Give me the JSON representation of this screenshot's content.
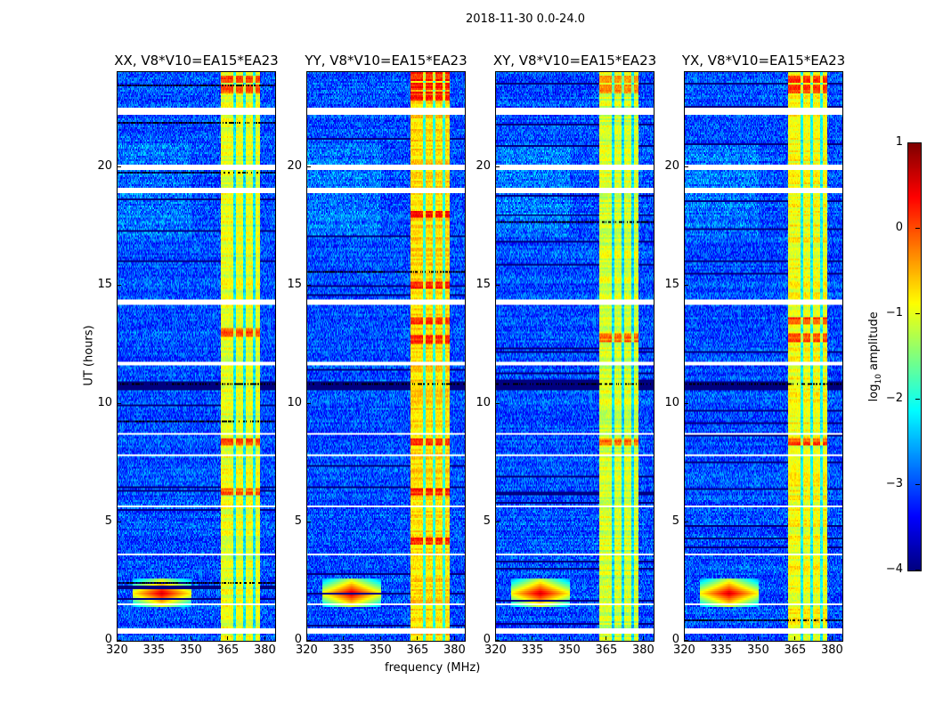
{
  "suptitle": "2018-11-30 0.0-24.0",
  "xlabel": "frequency (MHz)",
  "ylabel": "UT (hours)",
  "colorbar": {
    "label_prefix": "log",
    "label_sub": "10",
    "label_suffix": " amplitude",
    "range": [
      -4,
      1
    ],
    "ticks": [
      1,
      0,
      -1,
      -2,
      -3,
      -4
    ],
    "tick_labels": [
      "1",
      "0",
      "−1",
      "−2",
      "−3",
      "−4"
    ],
    "colormap": "jet"
  },
  "chart_data": [
    {
      "type": "heatmap",
      "title": "XX, V8*V10=EA15*EA23",
      "xlim": [
        320,
        384
      ],
      "ylim": [
        0,
        24
      ],
      "xticks": [
        320,
        335,
        350,
        365,
        380
      ],
      "xtick_labels": [
        "320",
        "335",
        "350",
        "365",
        "380"
      ],
      "yticks": [
        0,
        5,
        10,
        15,
        20
      ],
      "ytick_labels": [
        "0",
        "5",
        "10",
        "15",
        "20"
      ],
      "band_mhz": [
        362,
        378
      ],
      "band_level": -1.0,
      "hot_hours": [
        23.3,
        23.7,
        13.0,
        6.3,
        8.4
      ],
      "rfi": {
        "freq": 338,
        "hour": 2.0
      },
      "flagged_hours": [
        [
          22.2,
          22.5
        ],
        [
          19.9,
          20.1
        ],
        [
          18.9,
          19.1
        ],
        [
          14.2,
          14.4
        ],
        [
          11.6,
          11.8
        ],
        [
          8.7,
          8.8
        ],
        [
          7.8,
          7.9
        ],
        [
          5.6,
          5.7
        ],
        [
          4.1,
          4.15
        ],
        [
          3.6,
          3.7
        ],
        [
          1.5,
          1.6
        ],
        [
          0.3,
          0.5
        ]
      ],
      "bad_hours": [
        [
          10.6,
          10.95
        ]
      ]
    },
    {
      "type": "heatmap",
      "title": "YY, V8*V10=EA15*EA23",
      "xlim": [
        320,
        384
      ],
      "ylim": [
        0,
        24
      ],
      "xticks": [
        320,
        335,
        350,
        365,
        380
      ],
      "xtick_labels": [
        "320",
        "335",
        "350",
        "365",
        "380"
      ],
      "yticks": [
        0,
        5,
        10,
        15,
        20
      ],
      "ytick_labels": [
        "0",
        "5",
        "10",
        "15",
        "20"
      ],
      "band_mhz": [
        362,
        378
      ],
      "band_level": -0.7,
      "hot_hours": [
        23.0,
        23.4,
        23.8,
        12.7,
        13.5,
        18.0,
        15.0,
        8.4,
        6.3,
        4.2
      ],
      "rfi": {
        "freq": 338,
        "hour": 2.0
      },
      "flagged_hours": [
        [
          22.2,
          22.5
        ],
        [
          19.9,
          20.1
        ],
        [
          18.9,
          19.1
        ],
        [
          14.2,
          14.4
        ],
        [
          11.6,
          11.8
        ],
        [
          8.7,
          8.8
        ],
        [
          7.8,
          7.9
        ],
        [
          5.6,
          5.7
        ],
        [
          4.1,
          4.15
        ],
        [
          3.6,
          3.7
        ],
        [
          1.5,
          1.6
        ],
        [
          0.3,
          0.5
        ]
      ],
      "bad_hours": [
        [
          10.6,
          10.95
        ]
      ]
    },
    {
      "type": "heatmap",
      "title": "XY, V8*V10=EA15*EA23",
      "xlim": [
        320,
        384
      ],
      "ylim": [
        0,
        24
      ],
      "xticks": [
        320,
        335,
        350,
        365,
        380
      ],
      "xtick_labels": [
        "320",
        "335",
        "350",
        "365",
        "380"
      ],
      "yticks": [
        0,
        5,
        10,
        15,
        20
      ],
      "ytick_labels": [
        "0",
        "5",
        "10",
        "15",
        "20"
      ],
      "band_mhz": [
        362,
        378
      ],
      "band_level": -1.1,
      "hot_hours": [
        23.3,
        23.7,
        12.8,
        8.4
      ],
      "rfi": {
        "freq": 338,
        "hour": 2.0
      },
      "flagged_hours": [
        [
          22.2,
          22.5
        ],
        [
          19.9,
          20.1
        ],
        [
          18.9,
          19.1
        ],
        [
          14.2,
          14.4
        ],
        [
          11.6,
          11.8
        ],
        [
          8.7,
          8.8
        ],
        [
          7.8,
          7.9
        ],
        [
          5.6,
          5.7
        ],
        [
          4.1,
          4.15
        ],
        [
          3.6,
          3.7
        ],
        [
          1.5,
          1.6
        ],
        [
          0.3,
          0.5
        ]
      ],
      "bad_hours": [
        [
          10.6,
          10.95
        ]
      ]
    },
    {
      "type": "heatmap",
      "title": "YX, V8*V10=EA15*EA23",
      "xlim": [
        320,
        384
      ],
      "ylim": [
        0,
        24
      ],
      "xticks": [
        320,
        335,
        350,
        365,
        380
      ],
      "xtick_labels": [
        "320",
        "335",
        "350",
        "365",
        "380"
      ],
      "yticks": [
        0,
        5,
        10,
        15,
        20
      ],
      "ytick_labels": [
        "0",
        "5",
        "10",
        "15",
        "20"
      ],
      "band_mhz": [
        362,
        378
      ],
      "band_level": -0.9,
      "hot_hours": [
        23.3,
        23.7,
        12.8,
        13.5,
        8.4
      ],
      "rfi": {
        "freq": 338,
        "hour": 2.0
      },
      "flagged_hours": [
        [
          22.2,
          22.5
        ],
        [
          19.9,
          20.1
        ],
        [
          18.9,
          19.1
        ],
        [
          14.2,
          14.4
        ],
        [
          11.6,
          11.8
        ],
        [
          8.7,
          8.8
        ],
        [
          7.8,
          7.9
        ],
        [
          5.6,
          5.7
        ],
        [
          4.1,
          4.15
        ],
        [
          3.6,
          3.7
        ],
        [
          1.5,
          1.6
        ],
        [
          0.3,
          0.5
        ]
      ],
      "bad_hours": [
        [
          10.6,
          10.95
        ]
      ]
    }
  ]
}
